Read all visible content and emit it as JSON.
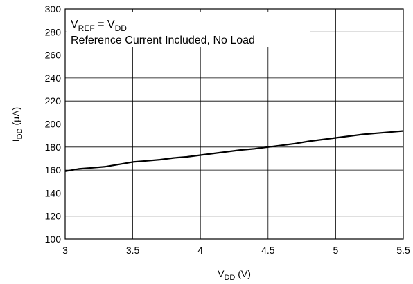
{
  "chart_data": {
    "type": "line",
    "xlim": [
      3,
      5.5
    ],
    "ylim": [
      100,
      300
    ],
    "xticks": [
      3,
      3.5,
      4,
      4.5,
      5,
      5.5
    ],
    "yticks": [
      100,
      120,
      140,
      160,
      180,
      200,
      220,
      240,
      260,
      280,
      300
    ],
    "grid": true,
    "xlabel": {
      "main": "V",
      "sub": "DD",
      "rest": " (V)"
    },
    "ylabel": {
      "main": "I",
      "sub": "DD",
      "rest": " (µA)"
    },
    "annotation": {
      "line1": {
        "v": "V",
        "ref": "REF",
        "eq": " = V",
        "dd": "DD"
      },
      "line2": "Reference Current Included, No Load"
    },
    "series": [
      {
        "x": [
          3.0,
          3.1,
          3.2,
          3.3,
          3.4,
          3.5,
          3.6,
          3.7,
          3.8,
          3.9,
          4.0,
          4.1,
          4.2,
          4.3,
          4.4,
          4.5,
          4.6,
          4.7,
          4.8,
          4.9,
          5.0,
          5.1,
          5.2,
          5.3,
          5.4,
          5.5
        ],
        "values": [
          159,
          161,
          162,
          163,
          165,
          167,
          168,
          169,
          170.5,
          171.5,
          173,
          174.5,
          176,
          177.5,
          178.5,
          180,
          181.5,
          183,
          185,
          186.5,
          188,
          189.5,
          191,
          192,
          193,
          194
        ]
      }
    ]
  }
}
